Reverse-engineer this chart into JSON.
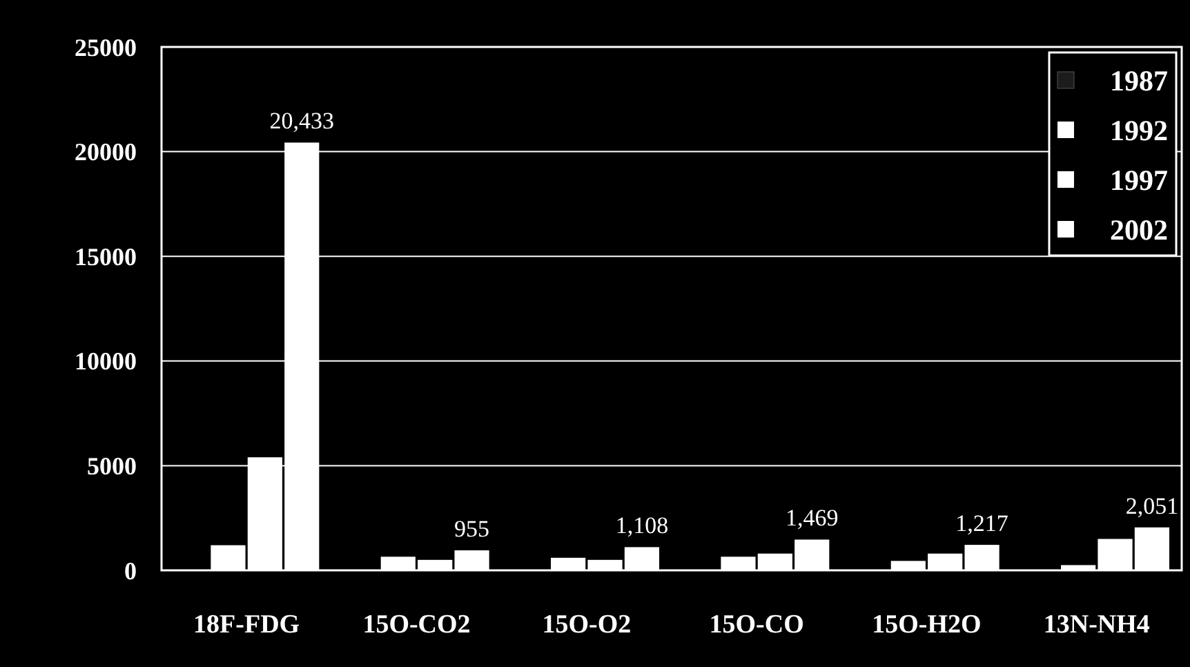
{
  "chart_data": {
    "type": "bar",
    "categories": [
      "18F-FDG",
      "15O-CO2",
      "15O-O2",
      "15O-CO",
      "15O-H2O",
      "13N-NH4"
    ],
    "series": [
      {
        "name": "1987",
        "color": "#1c1c1c",
        "values": [
          null,
          null,
          null,
          null,
          null,
          null
        ]
      },
      {
        "name": "1992",
        "color": "#ffffff",
        "values": [
          1200,
          650,
          600,
          650,
          450,
          250
        ]
      },
      {
        "name": "1997",
        "color": "#ffffff",
        "values": [
          5400,
          500,
          500,
          800,
          800,
          1500
        ]
      },
      {
        "name": "2002",
        "color": "#ffffff",
        "values": [
          20433,
          955,
          1108,
          1469,
          1217,
          2051
        ],
        "value_labels": [
          "20,433",
          "955",
          "1,108",
          "1,469",
          "1,217",
          "2,051"
        ]
      }
    ],
    "ylim": [
      0,
      25000
    ],
    "yticks": [
      0,
      5000,
      10000,
      15000,
      20000,
      25000
    ],
    "grid": "y",
    "legend": "top right"
  }
}
